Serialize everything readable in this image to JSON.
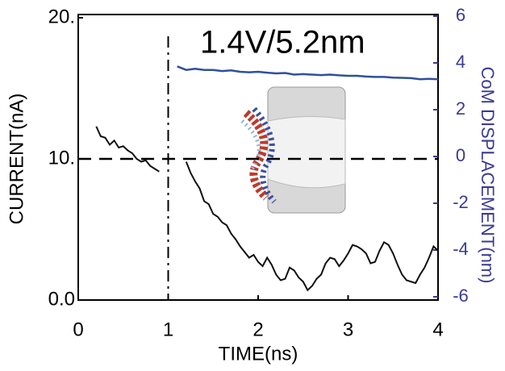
{
  "chart_data": {
    "type": "line",
    "annotation": "1.4V/5.2nm",
    "xlabel": "TIME(ns)",
    "ylabel": "CURRENT(nA)",
    "y2label": "CoM DISPLACEMENT(nm)",
    "xlim": [
      0,
      4
    ],
    "xticks": [
      0,
      1,
      2,
      3,
      4
    ],
    "ylim": [
      0,
      20
    ],
    "yticks": [
      {
        "value": 0,
        "label": "0.0"
      },
      {
        "value": 10,
        "label": "10."
      },
      {
        "value": 20,
        "label": "20."
      }
    ],
    "y2lim": [
      -6,
      6
    ],
    "y2ticks": [
      -6,
      -4,
      -2,
      0,
      2,
      4,
      6
    ],
    "y2color": "#3a3a94",
    "reference_lines": {
      "x": 1,
      "y": 10
    },
    "series": [
      {
        "color": "#111111",
        "axis": "y",
        "x": [
          0.2,
          0.25,
          0.3,
          0.35,
          0.4,
          0.45,
          0.5,
          0.55,
          0.6,
          0.65,
          0.7,
          0.75,
          0.8,
          0.85,
          0.9,
          1.0,
          1.2,
          1.25,
          1.3,
          1.35,
          1.4,
          1.45,
          1.5,
          1.55,
          1.6,
          1.65,
          1.7,
          1.75,
          1.8,
          1.85,
          1.9,
          1.95,
          2.0,
          2.05,
          2.1,
          2.15,
          2.2,
          2.25,
          2.3,
          2.35,
          2.4,
          2.45,
          2.5,
          2.55,
          2.6,
          2.65,
          2.7,
          2.75,
          2.8,
          2.85,
          2.9,
          2.95,
          3.0,
          3.05,
          3.1,
          3.15,
          3.2,
          3.25,
          3.3,
          3.35,
          3.4,
          3.45,
          3.5,
          3.55,
          3.6,
          3.65,
          3.7,
          3.75,
          3.8,
          3.85,
          3.9,
          3.95,
          4.0
        ],
        "values": [
          12.3,
          11.6,
          11.5,
          11.0,
          11.3,
          10.8,
          10.9,
          10.6,
          10.4,
          10.0,
          9.8,
          9.9,
          9.5,
          9.3,
          9.1,
          null,
          9.8,
          9.0,
          8.4,
          7.9,
          7.0,
          6.8,
          6.1,
          5.9,
          5.5,
          5.3,
          4.7,
          4.3,
          3.8,
          3.4,
          3.0,
          3.2,
          2.7,
          2.4,
          3.0,
          2.5,
          1.8,
          1.4,
          1.5,
          2.3,
          2.1,
          1.6,
          1.3,
          0.7,
          1.0,
          1.5,
          1.8,
          2.6,
          3.0,
          2.9,
          2.4,
          2.8,
          3.3,
          3.9,
          3.8,
          3.6,
          3.3,
          2.6,
          2.7,
          3.5,
          4.1,
          3.9,
          3.3,
          2.5,
          1.8,
          1.4,
          1.3,
          1.2,
          1.8,
          2.3,
          3.0,
          3.8,
          3.5
        ]
      },
      {
        "color": "#2f4fa0",
        "axis": "y2",
        "x": [
          1.1,
          1.2,
          1.3,
          1.4,
          1.5,
          1.6,
          1.7,
          1.8,
          1.9,
          2.0,
          2.1,
          2.2,
          2.3,
          2.4,
          2.5,
          2.6,
          2.7,
          2.8,
          2.9,
          3.0,
          3.1,
          3.2,
          3.3,
          3.4,
          3.5,
          3.6,
          3.7,
          3.8,
          3.9,
          4.0
        ],
        "values": [
          3.85,
          3.7,
          3.75,
          3.7,
          3.7,
          3.65,
          3.68,
          3.62,
          3.6,
          3.62,
          3.58,
          3.55,
          3.57,
          3.5,
          3.52,
          3.5,
          3.48,
          3.5,
          3.47,
          3.45,
          3.45,
          3.42,
          3.4,
          3.4,
          3.37,
          3.36,
          3.35,
          3.3,
          3.32,
          3.3
        ]
      }
    ]
  }
}
